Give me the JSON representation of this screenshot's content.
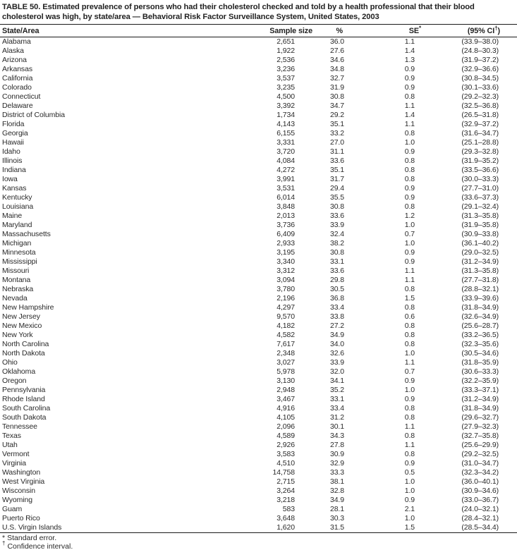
{
  "title": "TABLE 50. Estimated prevalence of persons who had their cholesterol checked and told by a health professional that their blood cholesterol was high, by state/area — Behavioral Risk Factor Surveillance System, United States, 2003",
  "columns": {
    "state": "State/Area",
    "sample": "Sample size",
    "pct": "%",
    "se": "SE",
    "se_sup": "*",
    "ci_pre": "(95% CI",
    "ci_sup": "†",
    "ci_post": ")"
  },
  "rows": [
    {
      "state": "Alabama",
      "sample": "2,651",
      "pct": "36.0",
      "se": "1.1",
      "ci": "(33.9–38.0)"
    },
    {
      "state": "Alaska",
      "sample": "1,922",
      "pct": "27.6",
      "se": "1.4",
      "ci": "(24.8–30.3)"
    },
    {
      "state": "Arizona",
      "sample": "2,536",
      "pct": "34.6",
      "se": "1.3",
      "ci": "(31.9–37.2)"
    },
    {
      "state": "Arkansas",
      "sample": "3,236",
      "pct": "34.8",
      "se": "0.9",
      "ci": "(32.9–36.6)"
    },
    {
      "state": "California",
      "sample": "3,537",
      "pct": "32.7",
      "se": "0.9",
      "ci": "(30.8–34.5)"
    },
    {
      "state": "Colorado",
      "sample": "3,235",
      "pct": "31.9",
      "se": "0.9",
      "ci": "(30.1–33.6)"
    },
    {
      "state": "Connecticut",
      "sample": "4,500",
      "pct": "30.8",
      "se": "0.8",
      "ci": "(29.2–32.3)"
    },
    {
      "state": "Delaware",
      "sample": "3,392",
      "pct": "34.7",
      "se": "1.1",
      "ci": "(32.5–36.8)"
    },
    {
      "state": "District of Columbia",
      "sample": "1,734",
      "pct": "29.2",
      "se": "1.4",
      "ci": "(26.5–31.8)"
    },
    {
      "state": "Florida",
      "sample": "4,143",
      "pct": "35.1",
      "se": "1.1",
      "ci": "(32.9–37.2)"
    },
    {
      "state": "Georgia",
      "sample": "6,155",
      "pct": "33.2",
      "se": "0.8",
      "ci": "(31.6–34.7)"
    },
    {
      "state": "Hawaii",
      "sample": "3,331",
      "pct": "27.0",
      "se": "1.0",
      "ci": "(25.1–28.8)"
    },
    {
      "state": "Idaho",
      "sample": "3,720",
      "pct": "31.1",
      "se": "0.9",
      "ci": "(29.3–32.8)"
    },
    {
      "state": "Illinois",
      "sample": "4,084",
      "pct": "33.6",
      "se": "0.8",
      "ci": "(31.9–35.2)"
    },
    {
      "state": "Indiana",
      "sample": "4,272",
      "pct": "35.1",
      "se": "0.8",
      "ci": "(33.5–36.6)"
    },
    {
      "state": "Iowa",
      "sample": "3,991",
      "pct": "31.7",
      "se": "0.8",
      "ci": "(30.0–33.3)"
    },
    {
      "state": "Kansas",
      "sample": "3,531",
      "pct": "29.4",
      "se": "0.9",
      "ci": "(27.7–31.0)"
    },
    {
      "state": "Kentucky",
      "sample": "6,014",
      "pct": "35.5",
      "se": "0.9",
      "ci": "(33.6–37.3)"
    },
    {
      "state": "Louisiana",
      "sample": "3,848",
      "pct": "30.8",
      "se": "0.8",
      "ci": "(29.1–32.4)"
    },
    {
      "state": "Maine",
      "sample": "2,013",
      "pct": "33.6",
      "se": "1.2",
      "ci": "(31.3–35.8)"
    },
    {
      "state": "Maryland",
      "sample": "3,736",
      "pct": "33.9",
      "se": "1.0",
      "ci": "(31.9–35.8)"
    },
    {
      "state": "Massachusetts",
      "sample": "6,409",
      "pct": "32.4",
      "se": "0.7",
      "ci": "(30.9–33.8)"
    },
    {
      "state": "Michigan",
      "sample": "2,933",
      "pct": "38.2",
      "se": "1.0",
      "ci": "(36.1–40.2)"
    },
    {
      "state": "Minnesota",
      "sample": "3,195",
      "pct": "30.8",
      "se": "0.9",
      "ci": "(29.0–32.5)"
    },
    {
      "state": "Mississippi",
      "sample": "3,340",
      "pct": "33.1",
      "se": "0.9",
      "ci": "(31.2–34.9)"
    },
    {
      "state": "Missouri",
      "sample": "3,312",
      "pct": "33.6",
      "se": "1.1",
      "ci": "(31.3–35.8)"
    },
    {
      "state": "Montana",
      "sample": "3,094",
      "pct": "29.8",
      "se": "1.1",
      "ci": "(27.7–31.8)"
    },
    {
      "state": "Nebraska",
      "sample": "3,780",
      "pct": "30.5",
      "se": "0.8",
      "ci": "(28.8–32.1)"
    },
    {
      "state": "Nevada",
      "sample": "2,196",
      "pct": "36.8",
      "se": "1.5",
      "ci": "(33.9–39.6)"
    },
    {
      "state": "New Hampshire",
      "sample": "4,297",
      "pct": "33.4",
      "se": "0.8",
      "ci": "(31.8–34.9)"
    },
    {
      "state": "New Jersey",
      "sample": "9,570",
      "pct": "33.8",
      "se": "0.6",
      "ci": "(32.6–34.9)"
    },
    {
      "state": "New Mexico",
      "sample": "4,182",
      "pct": "27.2",
      "se": "0.8",
      "ci": "(25.6–28.7)"
    },
    {
      "state": "New York",
      "sample": "4,582",
      "pct": "34.9",
      "se": "0.8",
      "ci": "(33.2–36.5)"
    },
    {
      "state": "North Carolina",
      "sample": "7,617",
      "pct": "34.0",
      "se": "0.8",
      "ci": "(32.3–35.6)"
    },
    {
      "state": "North Dakota",
      "sample": "2,348",
      "pct": "32.6",
      "se": "1.0",
      "ci": "(30.5–34.6)"
    },
    {
      "state": "Ohio",
      "sample": "3,027",
      "pct": "33.9",
      "se": "1.1",
      "ci": "(31.8–35.9)"
    },
    {
      "state": "Oklahoma",
      "sample": "5,978",
      "pct": "32.0",
      "se": "0.7",
      "ci": "(30.6–33.3)"
    },
    {
      "state": "Oregon",
      "sample": "3,130",
      "pct": "34.1",
      "se": "0.9",
      "ci": "(32.2–35.9)"
    },
    {
      "state": "Pennsylvania",
      "sample": "2,948",
      "pct": "35.2",
      "se": "1.0",
      "ci": "(33.3–37.1)"
    },
    {
      "state": "Rhode Island",
      "sample": "3,467",
      "pct": "33.1",
      "se": "0.9",
      "ci": "(31.2–34.9)"
    },
    {
      "state": "South Carolina",
      "sample": "4,916",
      "pct": "33.4",
      "se": "0.8",
      "ci": "(31.8–34.9)"
    },
    {
      "state": "South Dakota",
      "sample": "4,105",
      "pct": "31.2",
      "se": "0.8",
      "ci": "(29.6–32.7)"
    },
    {
      "state": "Tennessee",
      "sample": "2,096",
      "pct": "30.1",
      "se": "1.1",
      "ci": "(27.9–32.3)"
    },
    {
      "state": "Texas",
      "sample": "4,589",
      "pct": "34.3",
      "se": "0.8",
      "ci": "(32.7–35.8)"
    },
    {
      "state": "Utah",
      "sample": "2,926",
      "pct": "27.8",
      "se": "1.1",
      "ci": "(25.6–29.9)"
    },
    {
      "state": "Vermont",
      "sample": "3,583",
      "pct": "30.9",
      "se": "0.8",
      "ci": "(29.2–32.5)"
    },
    {
      "state": "Virginia",
      "sample": "4,510",
      "pct": "32.9",
      "se": "0.9",
      "ci": "(31.0–34.7)"
    },
    {
      "state": "Washington",
      "sample": "14,758",
      "pct": "33.3",
      "se": "0.5",
      "ci": "(32.3–34.2)"
    },
    {
      "state": "West Virginia",
      "sample": "2,715",
      "pct": "38.1",
      "se": "1.0",
      "ci": "(36.0–40.1)"
    },
    {
      "state": "Wisconsin",
      "sample": "3,264",
      "pct": "32.8",
      "se": "1.0",
      "ci": "(30.9–34.6)"
    },
    {
      "state": "Wyoming",
      "sample": "3,218",
      "pct": "34.9",
      "se": "0.9",
      "ci": "(33.0–36.7)"
    },
    {
      "state": "Guam",
      "sample": "583",
      "pct": "28.1",
      "se": "2.1",
      "ci": "(24.0–32.1)"
    },
    {
      "state": "Puerto Rico",
      "sample": "3,648",
      "pct": "30.3",
      "se": "1.0",
      "ci": "(28.4–32.1)"
    },
    {
      "state": "U.S. Virgin Islands",
      "sample": "1,620",
      "pct": "31.5",
      "se": "1.5",
      "ci": "(28.5–34.4)"
    }
  ],
  "footnotes": [
    {
      "symbol": "*",
      "text": "Standard error."
    },
    {
      "symbol": "†",
      "text": "Confidence interval."
    }
  ]
}
